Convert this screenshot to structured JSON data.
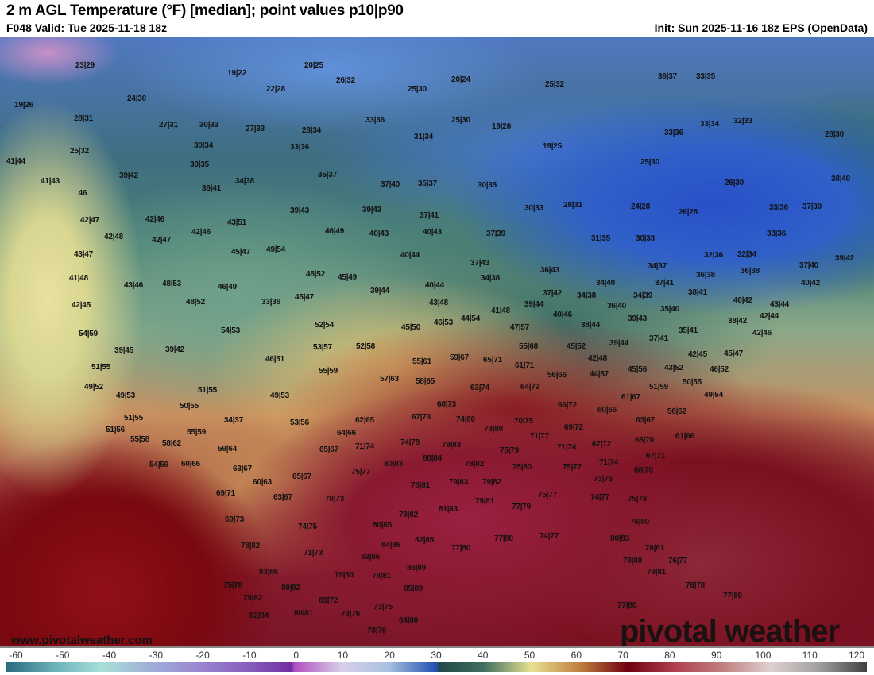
{
  "header": {
    "title": "2 m AGL Temperature (°F) [median]; point values p10|p90",
    "valid": "F048 Valid: Tue 2025-11-18 18z",
    "init": "Init: Sun 2025-11-16 18z EPS (OpenData)"
  },
  "map": {
    "point_values": [
      "23|29",
      "19|26",
      "28|31",
      "25|32",
      "41|44",
      "41|43",
      "46",
      "24|30",
      "19|22",
      "20|25",
      "22|28",
      "26|32",
      "25|30",
      "20|24",
      "25|32",
      "36|37",
      "33|35",
      "27|31",
      "30|33",
      "27|33",
      "28|34",
      "33|36",
      "31|34",
      "25|30",
      "19|26",
      "33|36",
      "33|34",
      "32|33",
      "28|30",
      "30|34",
      "33|36",
      "19|25",
      "30|35",
      "35|37",
      "34|38",
      "36|41",
      "37|40",
      "35|37",
      "30|35",
      "25|30",
      "26|30",
      "38|40",
      "39|42",
      "42|47",
      "42|46",
      "39|43",
      "39|43",
      "37|41",
      "30|33",
      "28|31",
      "24|28",
      "26|28",
      "33|36",
      "37|39",
      "42|48",
      "42|47",
      "42|46",
      "43|51",
      "46|49",
      "40|43",
      "40|43",
      "37|39",
      "31|35",
      "30|33",
      "33|36",
      "43|47",
      "45|47",
      "49|54",
      "40|44",
      "37|43",
      "32|36",
      "32|34",
      "37|40",
      "39|42",
      "41|48",
      "43|46",
      "48|53",
      "46|49",
      "48|52",
      "45|49",
      "34|38",
      "36|43",
      "34|37",
      "36|38",
      "36|38",
      "40|42",
      "42|45",
      "48|52",
      "33|36",
      "45|47",
      "39|44",
      "40|44",
      "37|42",
      "34|38",
      "34|40",
      "34|39",
      "37|41",
      "38|41",
      "40|42",
      "43|44",
      "43|48",
      "44|54",
      "41|48",
      "39|44",
      "40|46",
      "36|40",
      "39|43",
      "35|40",
      "38|42",
      "42|44",
      "54|59",
      "54|53",
      "52|54",
      "45|50",
      "46|53",
      "47|57",
      "38|44",
      "35|41",
      "37|41",
      "42|46",
      "39|45",
      "39|42",
      "53|57",
      "52|58",
      "55|68",
      "45|52",
      "39|44",
      "42|48",
      "42|45",
      "45|47",
      "51|55",
      "46|51",
      "55|59",
      "55|61",
      "59|67",
      "65|71",
      "61|71",
      "56|66",
      "44|57",
      "45|56",
      "43|52",
      "46|52",
      "49|52",
      "57|63",
      "58|65",
      "63|74",
      "64|72",
      "51|59",
      "50|55",
      "49|54",
      "49|53",
      "51|55",
      "49|53",
      "61|67",
      "50|55",
      "66|72",
      "60|66",
      "68|73",
      "56|62",
      "51|55",
      "34|37",
      "62|65",
      "67|73",
      "74|80",
      "70|75",
      "63|67",
      "53|56",
      "51|56",
      "55|59",
      "64|66",
      "73|80",
      "69|72",
      "71|77",
      "61|66",
      "55|58",
      "58|62",
      "74|78",
      "79|83",
      "66|70",
      "59|64",
      "65|67",
      "71|74",
      "75|79",
      "71|74",
      "67|72",
      "67|71",
      "54|59",
      "60|66",
      "80|84",
      "80|83",
      "78|82",
      "71|74",
      "63|67",
      "75|77",
      "75|80",
      "75|77",
      "68|70",
      "65|67",
      "60|63",
      "79|83",
      "79|82",
      "73|76",
      "78|81",
      "69|71",
      "63|67",
      "70|73",
      "75|77",
      "74|77",
      "75|78",
      "81|83",
      "79|81",
      "77|79",
      "78|82",
      "69|73",
      "74|75",
      "80|85",
      "76|80",
      "84|86",
      "82|85",
      "77|80",
      "77|80",
      "74|77",
      "78|82",
      "71|73",
      "83|86",
      "80|83",
      "78|81",
      "78|80",
      "76|77",
      "83|86",
      "79|80",
      "78|81",
      "86|89",
      "79|81",
      "75|78",
      "89|92",
      "85|89",
      "76|78",
      "79|82",
      "69|72",
      "77|80",
      "82|84",
      "80|81",
      "73|76",
      "73|75",
      "84|86",
      "77|80",
      "78|79"
    ]
  },
  "footer": {
    "website": "www.pivotalweather.com",
    "logo": "pivotal weather"
  },
  "colorbar": {
    "unit": "°F",
    "ticks": [
      "-60",
      "-50",
      "-40",
      "-30",
      "-20",
      "-10",
      "0",
      "10",
      "20",
      "30",
      "40",
      "50",
      "60",
      "70",
      "80",
      "90",
      "100",
      "110",
      "120"
    ]
  }
}
